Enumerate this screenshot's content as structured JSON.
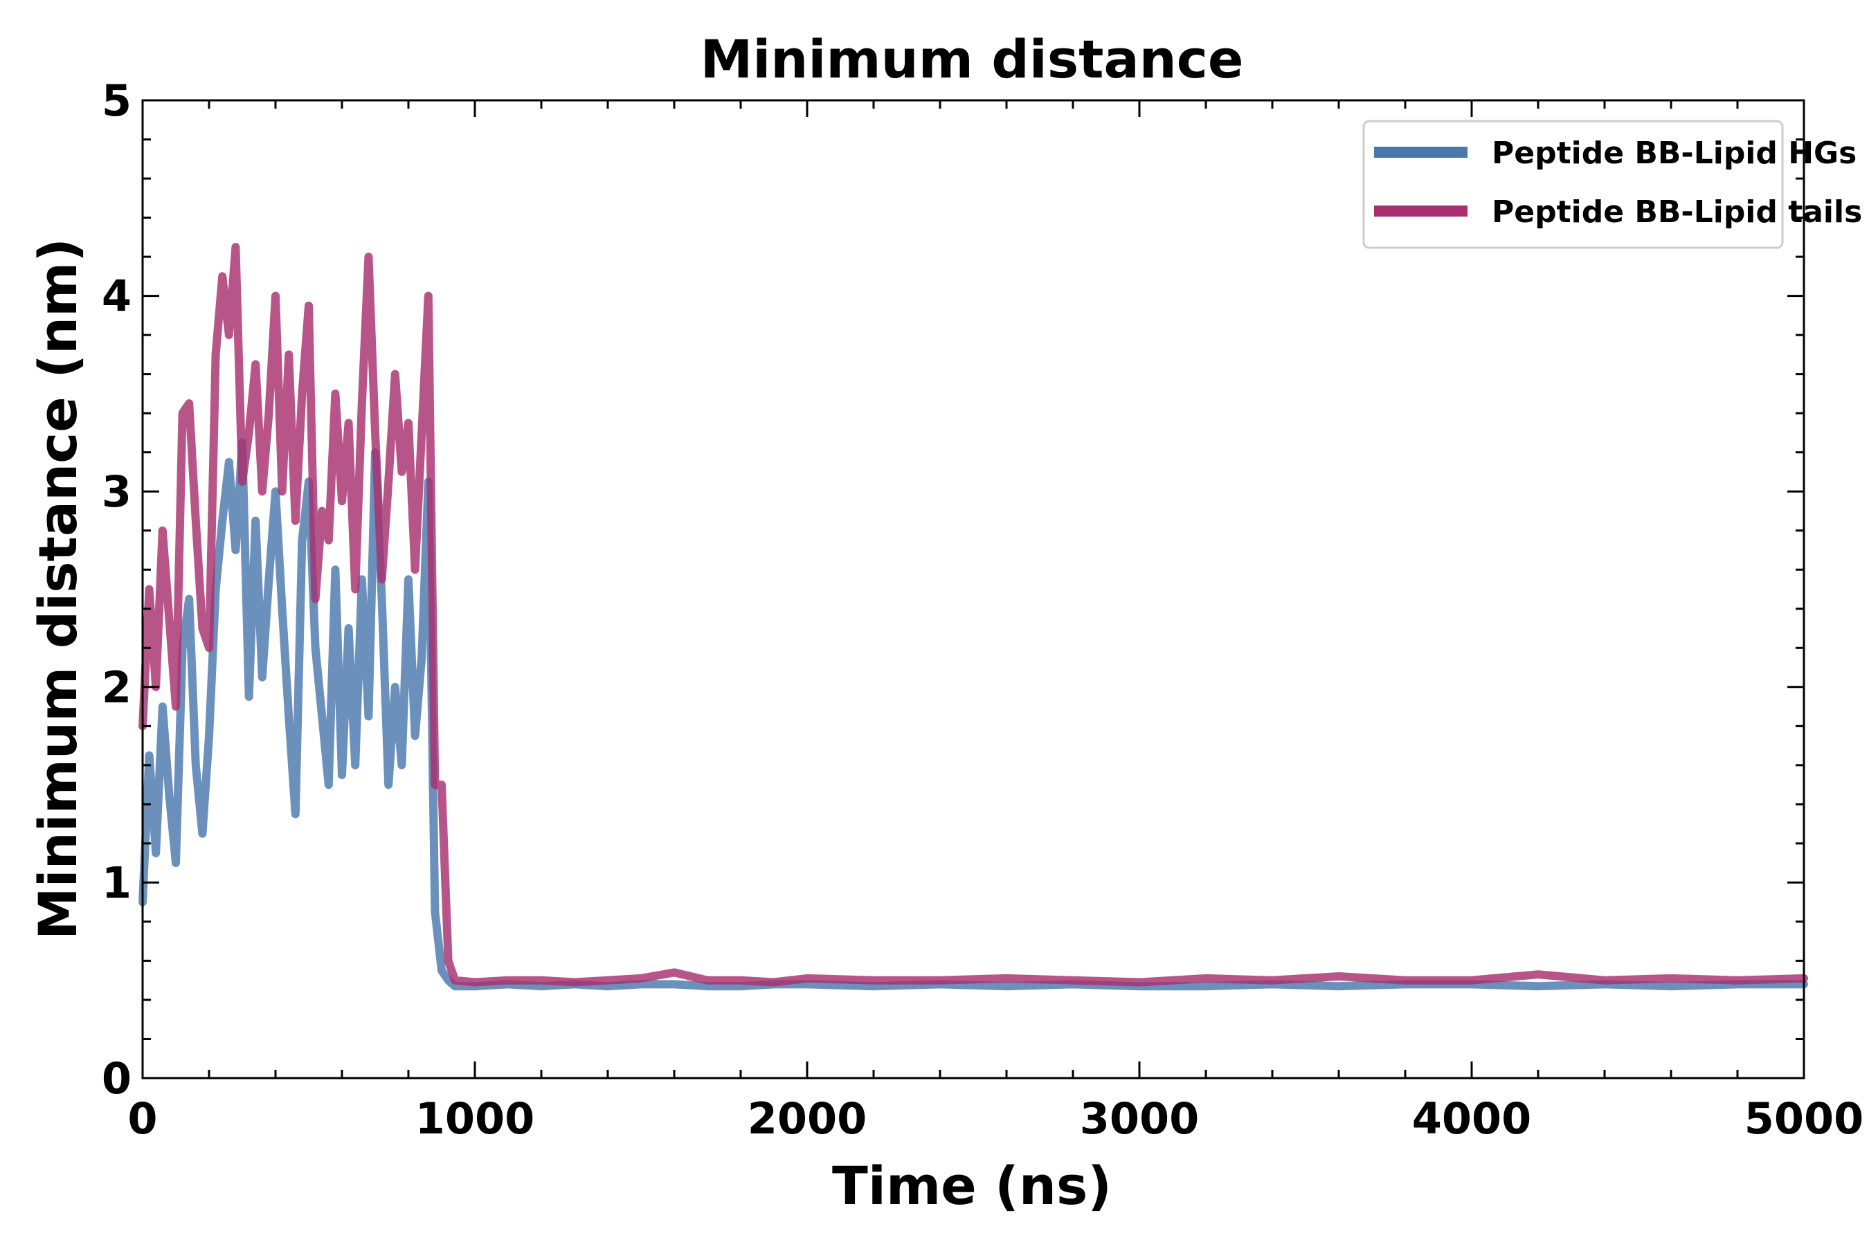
{
  "chart_data": {
    "type": "line",
    "title": "Minimum distance",
    "xlabel": "Time (ns)",
    "ylabel": "Minimum distance (nm)",
    "xlim": [
      0,
      5000
    ],
    "ylim": [
      0,
      5
    ],
    "x_ticks": [
      "0",
      "1000",
      "2000",
      "3000",
      "4000",
      "5000"
    ],
    "y_ticks": [
      "0",
      "1",
      "2",
      "3",
      "4",
      "5"
    ],
    "grid": false,
    "legend_position": "top-right",
    "series": [
      {
        "name": "Peptide BB-Lipid HGs",
        "color": "#4a78ad",
        "x": [
          0,
          20,
          40,
          60,
          80,
          100,
          120,
          140,
          160,
          180,
          200,
          220,
          240,
          260,
          280,
          300,
          320,
          340,
          360,
          380,
          400,
          420,
          440,
          460,
          480,
          500,
          520,
          540,
          560,
          580,
          600,
          620,
          640,
          660,
          680,
          700,
          720,
          740,
          760,
          780,
          800,
          820,
          840,
          860,
          880,
          900,
          920,
          940,
          1000,
          1100,
          1200,
          1300,
          1400,
          1500,
          1600,
          1700,
          1800,
          1900,
          2000,
          2200,
          2400,
          2600,
          2800,
          3000,
          3200,
          3400,
          3600,
          3800,
          4000,
          4200,
          4400,
          4600,
          4800,
          5000
        ],
        "y": [
          0.9,
          1.65,
          1.15,
          1.9,
          1.45,
          1.1,
          2.2,
          2.45,
          1.6,
          1.25,
          1.75,
          2.5,
          2.85,
          3.15,
          2.7,
          3.25,
          1.95,
          2.85,
          2.05,
          2.55,
          3.0,
          2.4,
          1.85,
          1.35,
          2.75,
          3.05,
          2.2,
          1.85,
          1.5,
          2.6,
          1.55,
          2.3,
          1.6,
          2.55,
          1.85,
          3.2,
          2.45,
          1.5,
          2.0,
          1.6,
          2.55,
          1.75,
          2.15,
          3.05,
          0.85,
          0.55,
          0.5,
          0.47,
          0.47,
          0.48,
          0.47,
          0.48,
          0.47,
          0.48,
          0.48,
          0.47,
          0.47,
          0.48,
          0.48,
          0.47,
          0.48,
          0.47,
          0.48,
          0.47,
          0.47,
          0.48,
          0.47,
          0.48,
          0.48,
          0.47,
          0.48,
          0.47,
          0.48,
          0.48
        ]
      },
      {
        "name": "Peptide BB-Lipid tails",
        "color": "#a8306e",
        "x": [
          0,
          20,
          40,
          60,
          80,
          100,
          120,
          140,
          160,
          180,
          200,
          220,
          240,
          260,
          280,
          300,
          320,
          340,
          360,
          380,
          400,
          420,
          440,
          460,
          480,
          500,
          520,
          540,
          560,
          580,
          600,
          620,
          640,
          660,
          680,
          700,
          720,
          740,
          760,
          780,
          800,
          820,
          840,
          860,
          880,
          900,
          920,
          940,
          1000,
          1100,
          1200,
          1300,
          1400,
          1500,
          1600,
          1700,
          1800,
          1900,
          2000,
          2200,
          2400,
          2600,
          2800,
          3000,
          3200,
          3400,
          3600,
          3800,
          4000,
          4200,
          4400,
          4600,
          4800,
          5000
        ],
        "y": [
          1.8,
          2.5,
          2.0,
          2.8,
          2.35,
          1.9,
          3.4,
          3.45,
          2.85,
          2.3,
          2.2,
          3.7,
          4.1,
          3.8,
          4.25,
          3.05,
          3.3,
          3.65,
          3.0,
          3.4,
          4.0,
          3.0,
          3.7,
          2.85,
          3.5,
          3.95,
          2.45,
          2.9,
          2.75,
          3.5,
          2.95,
          3.35,
          2.5,
          3.45,
          4.2,
          3.3,
          2.55,
          3.05,
          3.6,
          3.1,
          3.35,
          2.6,
          3.3,
          4.0,
          1.5,
          1.5,
          0.6,
          0.5,
          0.49,
          0.5,
          0.5,
          0.49,
          0.5,
          0.51,
          0.54,
          0.5,
          0.5,
          0.49,
          0.51,
          0.5,
          0.5,
          0.51,
          0.5,
          0.49,
          0.51,
          0.5,
          0.52,
          0.5,
          0.5,
          0.53,
          0.5,
          0.51,
          0.5,
          0.51
        ]
      }
    ]
  }
}
